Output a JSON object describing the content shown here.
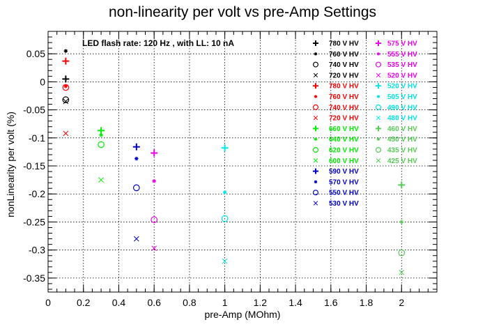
{
  "chart_data": {
    "type": "scatter",
    "title": "non-linearity per volt vs pre-Amp Settings",
    "xlabel": "pre-Amp (MOhm)",
    "ylabel": "nonLinearity per volt (%)",
    "annotation": "LED flash rate: 120 Hz , with LL: 10 nA",
    "xlim": [
      0,
      2.2
    ],
    "ylim": [
      -0.375,
      0.09
    ],
    "x_ticks": [
      0,
      0.2,
      0.4,
      0.6,
      0.8,
      1,
      1.2,
      1.4,
      1.6,
      1.8,
      2
    ],
    "x_tick_labels": [
      "0",
      "0.2",
      "0.4",
      "0.6",
      "0.8",
      "1",
      "1.2",
      "1.4",
      "1.6",
      "1.8",
      "2"
    ],
    "y_ticks": [
      0.05,
      0,
      -0.05,
      -0.1,
      -0.15,
      -0.2,
      -0.25,
      -0.3,
      -0.35
    ],
    "y_tick_labels": [
      "0.05",
      "0",
      "-0.05",
      "-0.1",
      "-0.15",
      "-0.2",
      "-0.25",
      "-0.3",
      "-0.35"
    ],
    "grid": true,
    "legend_position": "top-right",
    "series": [
      {
        "name": "780 V HV",
        "x": 0.1,
        "y": 0.005,
        "color": "#000000",
        "marker": "plus"
      },
      {
        "name": "760 V HV",
        "x": 0.1,
        "y": 0.055,
        "color": "#000000",
        "marker": "star"
      },
      {
        "name": "740 V HV",
        "x": 0.1,
        "y": -0.032,
        "color": "#000000",
        "marker": "circle"
      },
      {
        "name": "720 V HV",
        "x": 0.1,
        "y": -0.035,
        "color": "#000000",
        "marker": "cross"
      },
      {
        "name": "780 V HV",
        "x": 0.1,
        "y": 0.037,
        "color": "#ff0000",
        "marker": "plus"
      },
      {
        "name": "760 V HV",
        "x": 0.1,
        "y": -0.008,
        "color": "#ff0000",
        "marker": "star"
      },
      {
        "name": "740 V HV",
        "x": 0.1,
        "y": -0.01,
        "color": "#ff0000",
        "marker": "circle"
      },
      {
        "name": "720 V HV",
        "x": 0.1,
        "y": -0.092,
        "color": "#ff0000",
        "marker": "cross"
      },
      {
        "name": "660 V HV",
        "x": 0.3,
        "y": -0.087,
        "color": "#00ee00",
        "marker": "plus"
      },
      {
        "name": "640 V HV",
        "x": 0.3,
        "y": -0.095,
        "color": "#00ee00",
        "marker": "star"
      },
      {
        "name": "620 V HV",
        "x": 0.3,
        "y": -0.112,
        "color": "#00ee00",
        "marker": "circle"
      },
      {
        "name": "600 V HV",
        "x": 0.3,
        "y": -0.175,
        "color": "#00ee00",
        "marker": "cross"
      },
      {
        "name": "590 V HV",
        "x": 0.5,
        "y": -0.116,
        "color": "#0000cc",
        "marker": "plus"
      },
      {
        "name": "570 V HV",
        "x": 0.5,
        "y": -0.137,
        "color": "#0000cc",
        "marker": "star"
      },
      {
        "name": "550 V HV",
        "x": 0.5,
        "y": -0.189,
        "color": "#0000cc",
        "marker": "circle"
      },
      {
        "name": "530 V HV",
        "x": 0.5,
        "y": -0.28,
        "color": "#0000cc",
        "marker": "cross"
      },
      {
        "name": "575 V HV",
        "x": 0.6,
        "y": -0.127,
        "color": "#ee00ee",
        "marker": "plus"
      },
      {
        "name": "555 V HV",
        "x": 0.6,
        "y": -0.177,
        "color": "#ee00ee",
        "marker": "star"
      },
      {
        "name": "535 V HV",
        "x": 0.6,
        "y": -0.246,
        "color": "#ee00ee",
        "marker": "circle"
      },
      {
        "name": "520 V HV",
        "x": 0.6,
        "y": -0.297,
        "color": "#ee00ee",
        "marker": "cross"
      },
      {
        "name": "520 V HV",
        "x": 1.0,
        "y": -0.118,
        "color": "#00e5e5",
        "marker": "plus"
      },
      {
        "name": "505 V HV",
        "x": 1.0,
        "y": -0.197,
        "color": "#00e5e5",
        "marker": "star"
      },
      {
        "name": "490 V HV",
        "x": 1.0,
        "y": -0.244,
        "color": "#00e5e5",
        "marker": "circle"
      },
      {
        "name": "480 V HV",
        "x": 1.0,
        "y": -0.32,
        "color": "#00e5e5",
        "marker": "cross"
      },
      {
        "name": "460 V HV",
        "x": 2.0,
        "y": -0.184,
        "color": "#55cc55",
        "marker": "plus"
      },
      {
        "name": "450 V HV",
        "x": 2.0,
        "y": -0.25,
        "color": "#55cc55",
        "marker": "star"
      },
      {
        "name": "435 V HV",
        "x": 2.0,
        "y": -0.305,
        "color": "#55cc55",
        "marker": "circle"
      },
      {
        "name": "425 V HV",
        "x": 2.0,
        "y": -0.34,
        "color": "#55cc55",
        "marker": "cross"
      }
    ]
  }
}
